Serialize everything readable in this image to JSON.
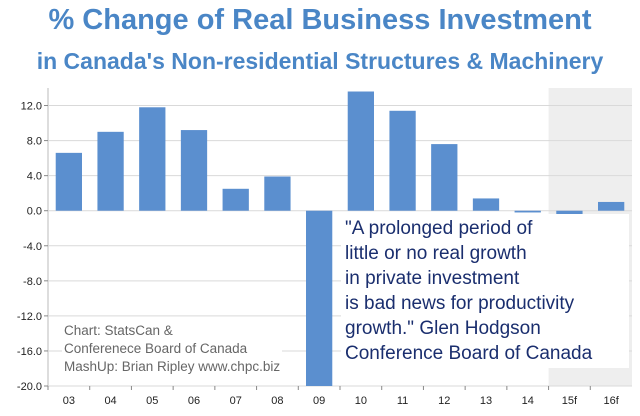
{
  "title": "% Change of Real Business Investment",
  "subtitle": "in Canada's Non-residential Structures & Machinery",
  "quote_lines": [
    "\"A prolonged period of",
    "little or no real growth",
    "in private investment",
    "is bad news for productivity",
    "growth.\" Glen Hodgson",
    "Conference Board of Canada"
  ],
  "credits": [
    "Chart: StatsCan &",
    "Conferenece Board of Canada",
    "MashUp: Brian Ripley www.chpc.biz"
  ],
  "colors": {
    "bar": "#5b8fcf",
    "title": "#4a86c6",
    "forecast_shade": "#eeeeee",
    "grid": "#d9d9d9",
    "quote": "#1a2e6e"
  },
  "chart_data": {
    "type": "bar",
    "categories": [
      "03",
      "04",
      "05",
      "06",
      "07",
      "08",
      "09",
      "10",
      "11",
      "12",
      "13",
      "14",
      "15f",
      "16f"
    ],
    "values": [
      6.6,
      9.0,
      11.8,
      9.2,
      2.5,
      3.9,
      -20.0,
      13.6,
      11.4,
      7.6,
      1.4,
      -0.2,
      -7.6,
      1.0
    ],
    "forecast_categories": [
      "15f",
      "16f"
    ],
    "ylim": [
      -20.0,
      14.0
    ],
    "yticks": [
      "12.0",
      "8.0",
      "4.0",
      "0.0",
      "-4.0",
      "-8.0",
      "-12.0",
      "-16.0",
      "-20.0"
    ],
    "ytick_values": [
      12,
      8,
      4,
      0,
      -4,
      -8,
      -12,
      -16,
      -20
    ],
    "grid": true,
    "legend": "none"
  }
}
